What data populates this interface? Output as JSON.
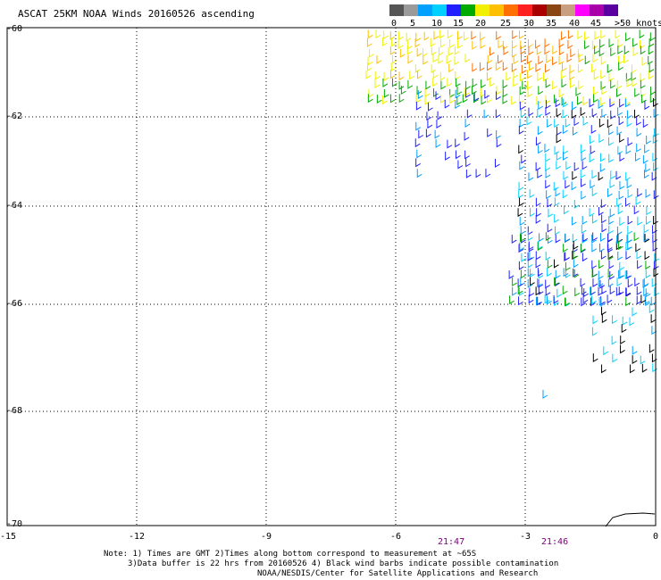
{
  "title": "ASCAT 25KM NOAA Winds 20160526 ascending",
  "legend": {
    "colors": [
      "#555555",
      "#9a9a9a",
      "#00a0ff",
      "#00d0ff",
      "#2020ff",
      "#00aa00",
      "#f0f000",
      "#ffc000",
      "#ff7000",
      "#ff2020",
      "#aa0000",
      "#8b4513",
      "#c8a080",
      "#ff00ff",
      "#aa00aa",
      "#5a00a0"
    ],
    "labels": [
      "0",
      "5",
      "10",
      "15",
      "20",
      "25",
      "30",
      "35",
      "40",
      "45",
      ">50 knots"
    ]
  },
  "axes": {
    "lat_labels": [
      "-60",
      "-62",
      "-64",
      "-66",
      "-68",
      "-70"
    ],
    "lon_labels": [
      "-15",
      "-12",
      "-9",
      "-6",
      "-3",
      "0"
    ]
  },
  "times": [
    "21:47",
    "21:46"
  ],
  "notes": [
    "Note: 1) Times are GMT 2)Times along bottom correspond to measurement at ~65S",
    "3)Data buffer is 22 hrs from 20160526 4) Black wind barbs indicate possible contamination",
    "NOAA/NESDIS/Center for Satellite Applications and Research"
  ]
}
